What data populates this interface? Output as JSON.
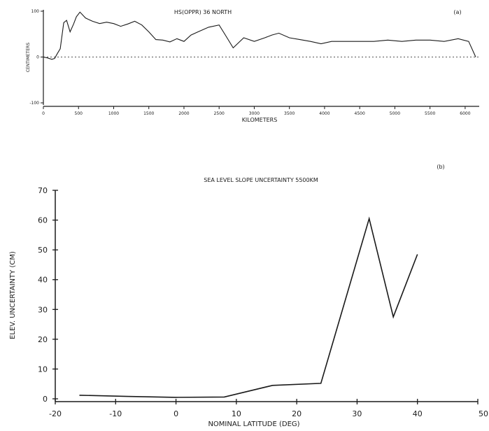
{
  "chart_data": [
    {
      "type": "line",
      "title": "HS(OPPR) 36 NORTH",
      "panel_label": "(a)",
      "xlabel": "KILOMETERS",
      "ylabel": "CENTIMETERS",
      "xlim": [
        0,
        6200
      ],
      "ylim": [
        -100,
        100
      ],
      "xticks": [
        0,
        500,
        1000,
        1500,
        2000,
        2500,
        3000,
        3500,
        4000,
        4500,
        5000,
        5500,
        6000
      ],
      "yticks": [
        -100,
        0,
        100
      ],
      "reference_line_y": 0,
      "x": [
        0,
        60,
        120,
        160,
        200,
        240,
        290,
        330,
        380,
        430,
        470,
        520,
        600,
        700,
        800,
        900,
        1000,
        1100,
        1200,
        1300,
        1400,
        1500,
        1600,
        1700,
        1800,
        1900,
        2000,
        2100,
        2200,
        2350,
        2500,
        2600,
        2700,
        2850,
        3000,
        3150,
        3250,
        3350,
        3500,
        3650,
        3800,
        3950,
        4100,
        4300,
        4500,
        4700,
        4900,
        5100,
        5300,
        5500,
        5700,
        5900,
        6050,
        6150
      ],
      "y": [
        0,
        -2,
        -5,
        -3,
        8,
        18,
        75,
        80,
        55,
        72,
        88,
        98,
        85,
        78,
        73,
        76,
        73,
        67,
        72,
        78,
        70,
        55,
        38,
        37,
        33,
        40,
        34,
        48,
        55,
        65,
        70,
        45,
        20,
        42,
        34,
        42,
        48,
        52,
        42,
        38,
        34,
        29,
        34,
        34,
        34,
        34,
        37,
        34,
        37,
        37,
        34,
        40,
        34,
        0
      ]
    },
    {
      "type": "line",
      "title": "SEA LEVEL SLOPE UNCERTAINTY 5500KM",
      "panel_label": "(b)",
      "xlabel": "NOMINAL LATITUDE (DEG)",
      "ylabel": "ELEV. UNCERTAINTY (CM)",
      "xlim": [
        -20,
        50
      ],
      "ylim": [
        0,
        70
      ],
      "xticks": [
        -20,
        -10,
        0,
        10,
        20,
        30,
        40,
        50
      ],
      "yticks": [
        0,
        10,
        20,
        30,
        40,
        50,
        60,
        70
      ],
      "x": [
        -16,
        -8,
        0,
        8,
        16,
        24,
        32,
        36,
        40
      ],
      "y": [
        1.2,
        0.8,
        0.5,
        0.6,
        4.5,
        5.2,
        60.5,
        27.5,
        48.5
      ]
    }
  ]
}
